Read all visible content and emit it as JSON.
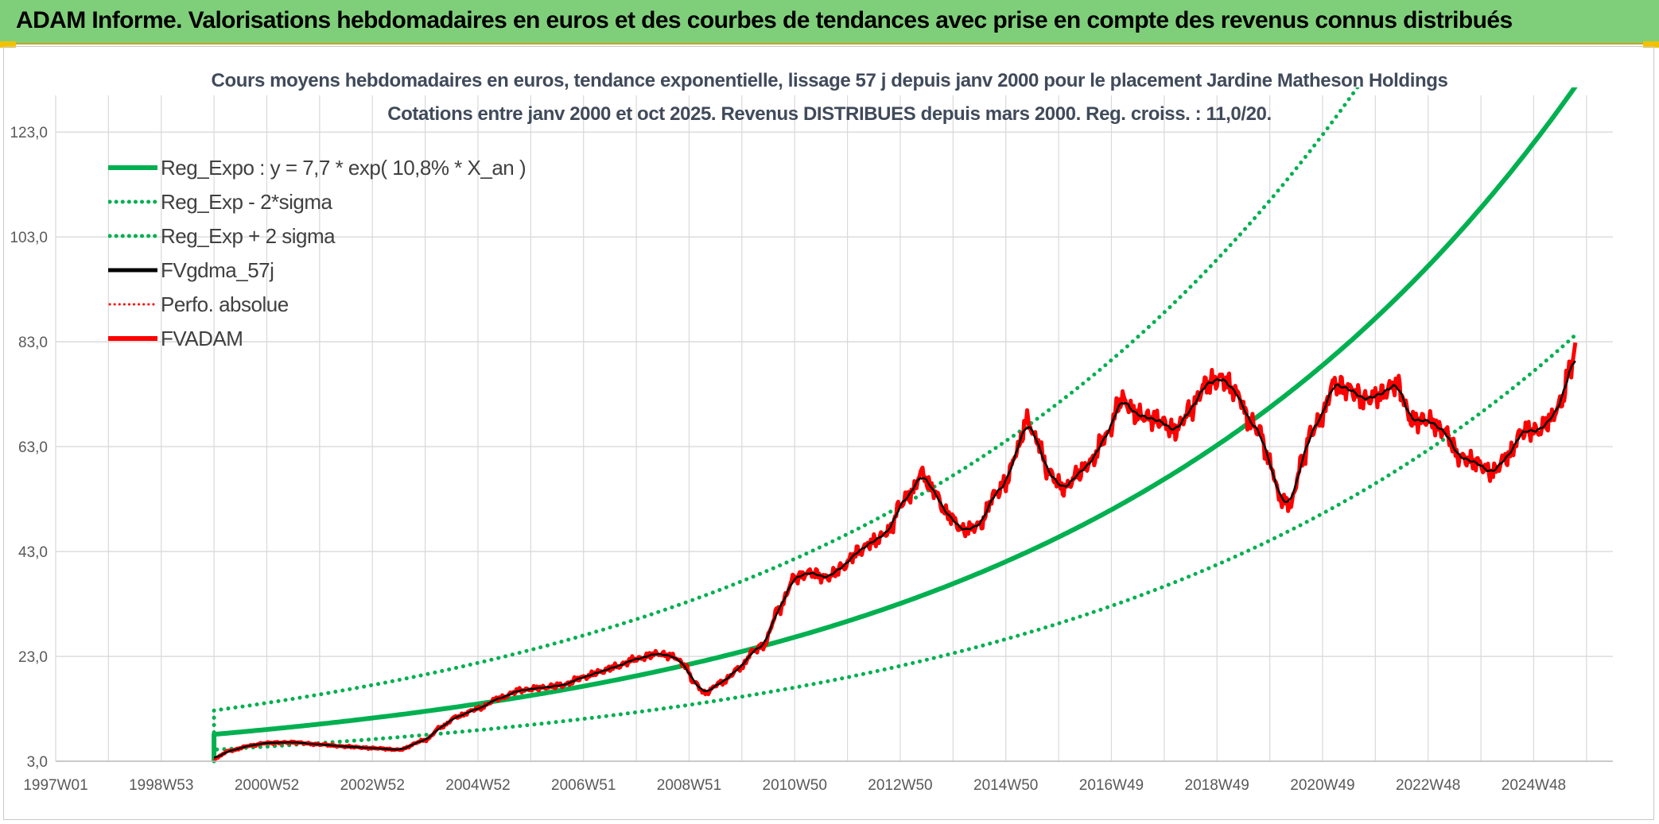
{
  "header": {
    "title": "ADAM Informe. Valorisations hebdomadaires en euros et des courbes de tendances avec prise en compte des revenus connus distribués"
  },
  "colors": {
    "banner": "#7fcf7a",
    "regression": "#00b050",
    "smoothed": "#000000",
    "adam": "#ff0000",
    "grid": "#d9d9d9",
    "axis_text": "#595959"
  },
  "chart_data": {
    "type": "line",
    "title": "Cours moyens hebdomadaires en euros, tendance exponentielle, lissage 57 j depuis janv 2000 pour le placement Jardine Matheson Holdings",
    "subtitle": "Cotations entre janv 2000 et oct 2025. Revenus DISTRIBUES depuis mars 2000. Reg. croiss. : 11,0/20.",
    "xlabel": "",
    "ylabel": "",
    "xlim": [
      1997.0,
      2026.5
    ],
    "ylim": [
      3.0,
      130.0
    ],
    "y_ticks": [
      3.0,
      23.0,
      43.0,
      63.0,
      83.0,
      103.0,
      123.0
    ],
    "y_tick_labels": [
      "3,0",
      "23,0",
      "43,0",
      "63,0",
      "83,0",
      "103,0",
      "123,0"
    ],
    "x_ticks": [
      1997.0,
      1999.0,
      2001.0,
      2003.0,
      2005.0,
      2007.0,
      2009.0,
      2011.0,
      2013.0,
      2015.0,
      2017.0,
      2019.0,
      2021.0,
      2023.0,
      2025.0
    ],
    "x_tick_labels": [
      "1997W01",
      "1998W53",
      "2000W52",
      "2002W52",
      "2004W52",
      "2006W51",
      "2008W51",
      "2010W50",
      "2012W50",
      "2014W50",
      "2016W49",
      "2018W49",
      "2020W49",
      "2022W48",
      "2024W48"
    ],
    "legend_position": "top-left",
    "regression": {
      "a": 7.7,
      "rate": 0.108,
      "x_start": 2000.0,
      "x_end": 2025.8
    },
    "series": [
      {
        "name": "Reg_Expo : y = 7,7 * exp( 10,8% *  X_an )",
        "style": "solid-thick",
        "color": "#00b050",
        "kind": "regression",
        "factor": 1.0
      },
      {
        "name": "Reg_Exp - 2*sigma",
        "style": "dotted",
        "color": "#00b050",
        "kind": "regression",
        "factor": 0.64
      },
      {
        "name": "Reg_Exp + 2 sigma",
        "style": "dotted",
        "color": "#00b050",
        "kind": "regression",
        "factor": 1.56
      },
      {
        "name": "FVgdma_57j",
        "style": "solid",
        "color": "#000000",
        "kind": "smooth"
      },
      {
        "name": "Perfo. absolue",
        "style": "dotted",
        "color": "#ff0000",
        "kind": "hidden"
      },
      {
        "name": "FVADAM",
        "style": "solid-thick",
        "color": "#ff0000",
        "kind": "data"
      }
    ],
    "fvadam": {
      "x": [
        2000.0,
        2000.3,
        2000.7,
        2001.0,
        2001.5,
        2002.0,
        2002.5,
        2003.0,
        2003.5,
        2004.0,
        2004.3,
        2004.6,
        2005.0,
        2005.4,
        2005.8,
        2006.2,
        2006.6,
        2007.0,
        2007.3,
        2007.6,
        2008.0,
        2008.4,
        2008.7,
        2008.9,
        2009.1,
        2009.3,
        2009.6,
        2010.0,
        2010.2,
        2010.4,
        2010.7,
        2011.0,
        2011.3,
        2011.6,
        2011.9,
        2012.2,
        2012.5,
        2012.8,
        2013.0,
        2013.2,
        2013.4,
        2013.6,
        2013.9,
        2014.2,
        2014.5,
        2014.8,
        2015.0,
        2015.2,
        2015.4,
        2015.6,
        2015.8,
        2016.1,
        2016.4,
        2016.6,
        2016.9,
        2017.2,
        2017.5,
        2017.9,
        2018.2,
        2018.5,
        2018.8,
        2019.1,
        2019.4,
        2019.6,
        2019.8,
        2020.0,
        2020.2,
        2020.4,
        2020.6,
        2020.8,
        2021.0,
        2021.2,
        2021.5,
        2021.8,
        2022.1,
        2022.4,
        2022.7,
        2023.0,
        2023.3,
        2023.6,
        2023.9,
        2024.2,
        2024.5,
        2024.8,
        2025.1,
        2025.3,
        2025.5,
        2025.7,
        2025.8
      ],
      "y": [
        3.5,
        5.0,
        6.0,
        6.5,
        6.6,
        6.2,
        5.8,
        5.5,
        5.2,
        7.0,
        9.5,
        11.5,
        13.0,
        15.0,
        16.5,
        17.0,
        17.5,
        19.0,
        20.0,
        21.0,
        22.5,
        23.5,
        23.0,
        21.5,
        18.0,
        16.0,
        18.0,
        21.0,
        24.0,
        25.0,
        32.0,
        38.0,
        39.0,
        38.0,
        40.0,
        43.0,
        45.0,
        47.0,
        52.0,
        54.0,
        58.0,
        55.0,
        50.0,
        47.0,
        48.0,
        54.0,
        56.0,
        62.0,
        68.0,
        64.0,
        58.0,
        55.0,
        58.0,
        60.0,
        65.0,
        72.0,
        69.0,
        68.0,
        66.0,
        70.0,
        75.0,
        76.0,
        73.0,
        68.0,
        66.0,
        60.0,
        53.0,
        52.0,
        60.0,
        66.0,
        69.0,
        75.0,
        74.0,
        72.0,
        73.0,
        75.0,
        68.0,
        68.0,
        66.0,
        61.0,
        60.0,
        58.0,
        61.0,
        66.0,
        66.0,
        68.0,
        71.0,
        78.0,
        82.0
      ]
    }
  }
}
